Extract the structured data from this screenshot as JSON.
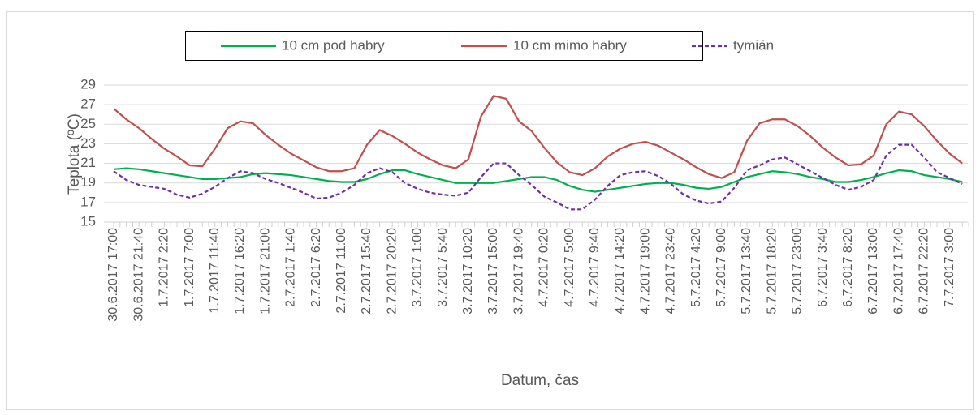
{
  "chart_data": {
    "type": "line",
    "ylabel": "Teplota (ºC)",
    "xlabel": "Datum, čas",
    "categories": [
      "30.6.2017 17:00",
      null,
      "30.6.2017 21:40",
      null,
      "1.7.2017 2:20",
      null,
      "1.7.2017 7:00",
      null,
      "1.7.2017 11:40",
      null,
      "1.7.2017 16:20",
      null,
      "1.7.2017 21:00",
      null,
      "2.7.2017 1:40",
      null,
      "2.7.2017 6:20",
      null,
      "2.7.2017 11:00",
      null,
      "2.7.2017 15:40",
      null,
      "2.7.2017 20:20",
      null,
      "3.7.2017 1:00",
      null,
      "3.7.2017 5:40",
      null,
      "3.7.2017 10:20",
      null,
      "3.7.2017 15:00",
      null,
      "3.7.2017 19:40",
      null,
      "4.7.2017 0:20",
      null,
      "4.7.2017 5:00",
      null,
      "4.7.2017 9:40",
      null,
      "4.7.2017 14:20",
      null,
      "4.7.2017 19:00",
      null,
      "4.7.2017 23:40",
      null,
      "5.7.2017 4:20",
      null,
      "5.7.2017 9:00",
      null,
      "5.7.2017 13:40",
      null,
      "5.7.2017 18:20",
      null,
      "5.7.2017 23:00",
      null,
      "6.7.2017 3:40",
      null,
      "6.7.2017 8:20",
      null,
      "6.7.2017 13:00",
      null,
      "6.7.2017 17:40",
      null,
      "6.7.2017 22:20",
      null,
      "7.7.2017 3:00",
      null
    ],
    "series": [
      {
        "name": "10 cm pod habry",
        "color": "#00b050",
        "dash": "solid",
        "values": [
          20.4,
          20.5,
          20.4,
          20.2,
          20.0,
          19.8,
          19.6,
          19.4,
          19.4,
          19.5,
          19.6,
          19.9,
          20.0,
          19.9,
          19.8,
          19.6,
          19.4,
          19.2,
          19.1,
          19.1,
          19.4,
          19.9,
          20.3,
          20.3,
          19.9,
          19.6,
          19.3,
          19.0,
          19.0,
          19.0,
          19.0,
          19.2,
          19.4,
          19.6,
          19.6,
          19.3,
          18.7,
          18.3,
          18.1,
          18.3,
          18.5,
          18.7,
          18.9,
          19.0,
          19.0,
          18.8,
          18.5,
          18.4,
          18.6,
          19.1,
          19.6,
          19.9,
          20.2,
          20.1,
          19.9,
          19.6,
          19.4,
          19.1,
          19.1,
          19.3,
          19.6,
          20.0,
          20.3,
          20.2,
          19.8,
          19.6,
          19.4,
          19.1
        ]
      },
      {
        "name": "10 cm mimo habry",
        "color": "#c0504d",
        "dash": "solid",
        "values": [
          26.6,
          25.5,
          24.6,
          23.5,
          22.5,
          21.7,
          20.8,
          20.7,
          22.5,
          24.6,
          25.3,
          25.1,
          23.9,
          22.9,
          22.0,
          21.3,
          20.6,
          20.2,
          20.2,
          20.5,
          22.9,
          24.4,
          23.8,
          23.0,
          22.1,
          21.4,
          20.8,
          20.5,
          21.4,
          25.8,
          27.9,
          27.6,
          25.3,
          24.3,
          22.6,
          21.1,
          20.1,
          19.8,
          20.5,
          21.7,
          22.5,
          23.0,
          23.2,
          22.8,
          22.1,
          21.4,
          20.6,
          19.9,
          19.5,
          20.1,
          23.3,
          25.1,
          25.5,
          25.5,
          24.8,
          23.8,
          22.6,
          21.6,
          20.8,
          20.9,
          21.8,
          25.0,
          26.3,
          26.0,
          24.8,
          23.3,
          22.0,
          21.0
        ]
      },
      {
        "name": "tymián",
        "color": "#7030a0",
        "dash": "dashed",
        "values": [
          20.2,
          19.3,
          18.8,
          18.6,
          18.4,
          17.8,
          17.5,
          17.9,
          18.6,
          19.5,
          20.2,
          20.0,
          19.4,
          19.0,
          18.5,
          18.0,
          17.4,
          17.5,
          18.0,
          18.8,
          20.0,
          20.5,
          20.1,
          19.0,
          18.4,
          18.0,
          17.8,
          17.7,
          18.0,
          19.6,
          21.0,
          21.0,
          19.8,
          18.8,
          17.6,
          17.0,
          16.3,
          16.3,
          17.3,
          18.7,
          19.8,
          20.1,
          20.2,
          19.7,
          18.9,
          17.8,
          17.2,
          16.9,
          17.1,
          18.5,
          20.3,
          20.8,
          21.4,
          21.6,
          20.9,
          20.2,
          19.5,
          18.8,
          18.3,
          18.6,
          19.3,
          21.8,
          22.9,
          22.9,
          21.6,
          20.1,
          19.5,
          18.9
        ]
      }
    ],
    "ylim": [
      15,
      29
    ],
    "yticks": [
      15,
      17,
      19,
      21,
      23,
      25,
      27,
      29
    ],
    "grid": true,
    "legend": "top"
  }
}
